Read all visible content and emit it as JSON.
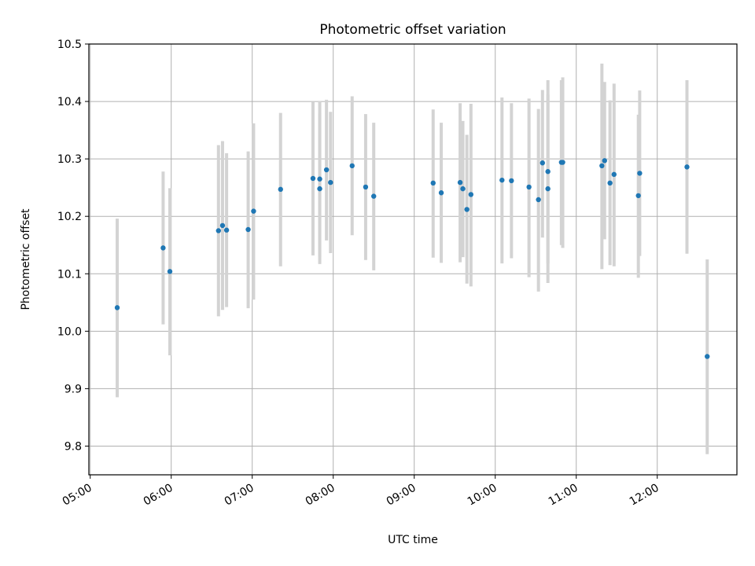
{
  "chart_data": {
    "type": "scatter",
    "title": "Photometric offset variation",
    "xlabel": "UTC time",
    "ylabel": "Photometric offset",
    "x_unit": "UTC time of day (HH:MM)",
    "xlim": [
      "04:59",
      "12:59"
    ],
    "ylim": [
      9.75,
      10.5
    ],
    "grid": true,
    "x_ticks": [
      "05:00",
      "06:00",
      "07:00",
      "08:00",
      "09:00",
      "10:00",
      "11:00",
      "12:00"
    ],
    "y_ticks": [
      "9.8",
      "9.9",
      "10.0",
      "10.1",
      "10.2",
      "10.3",
      "10.4",
      "10.5"
    ],
    "point_color": "#1f77b4",
    "errorbar_color": "#d3d3d3",
    "points": [
      {
        "x": "05:20",
        "y": 10.041,
        "low": 9.885,
        "high": 10.196
      },
      {
        "x": "05:54",
        "y": 10.145,
        "low": 10.012,
        "high": 10.278
      },
      {
        "x": "05:59",
        "y": 10.104,
        "low": 9.958,
        "high": 10.249
      },
      {
        "x": "06:35",
        "y": 10.175,
        "low": 10.026,
        "high": 10.324
      },
      {
        "x": "06:38",
        "y": 10.184,
        "low": 10.037,
        "high": 10.331
      },
      {
        "x": "06:41",
        "y": 10.176,
        "low": 10.042,
        "high": 10.31
      },
      {
        "x": "06:57",
        "y": 10.177,
        "low": 10.04,
        "high": 10.313
      },
      {
        "x": "07:01",
        "y": 10.209,
        "low": 10.055,
        "high": 10.362
      },
      {
        "x": "07:21",
        "y": 10.247,
        "low": 10.113,
        "high": 10.38
      },
      {
        "x": "07:45",
        "y": 10.266,
        "low": 10.132,
        "high": 10.4
      },
      {
        "x": "07:50",
        "y": 10.265,
        "low": 10.13,
        "high": 10.401
      },
      {
        "x": "07:50",
        "y": 10.248,
        "low": 10.117,
        "high": 10.379
      },
      {
        "x": "07:55",
        "y": 10.281,
        "low": 10.158,
        "high": 10.403
      },
      {
        "x": "07:58",
        "y": 10.259,
        "low": 10.136,
        "high": 10.382
      },
      {
        "x": "08:14",
        "y": 10.288,
        "low": 10.167,
        "high": 10.409
      },
      {
        "x": "08:24",
        "y": 10.251,
        "low": 10.124,
        "high": 10.378
      },
      {
        "x": "08:30",
        "y": 10.235,
        "low": 10.106,
        "high": 10.363
      },
      {
        "x": "09:14",
        "y": 10.258,
        "low": 10.128,
        "high": 10.386
      },
      {
        "x": "09:20",
        "y": 10.241,
        "low": 10.119,
        "high": 10.363
      },
      {
        "x": "09:34",
        "y": 10.259,
        "low": 10.12,
        "high": 10.397
      },
      {
        "x": "09:36",
        "y": 10.248,
        "low": 10.129,
        "high": 10.366
      },
      {
        "x": "09:39",
        "y": 10.212,
        "low": 10.083,
        "high": 10.342
      },
      {
        "x": "09:42",
        "y": 10.238,
        "low": 10.078,
        "high": 10.396
      },
      {
        "x": "10:05",
        "y": 10.263,
        "low": 10.118,
        "high": 10.407
      },
      {
        "x": "10:12",
        "y": 10.262,
        "low": 10.127,
        "high": 10.397
      },
      {
        "x": "10:25",
        "y": 10.251,
        "low": 10.094,
        "high": 10.405
      },
      {
        "x": "10:32",
        "y": 10.229,
        "low": 10.069,
        "high": 10.387
      },
      {
        "x": "10:35",
        "y": 10.293,
        "low": 10.163,
        "high": 10.42
      },
      {
        "x": "10:39",
        "y": 10.278,
        "low": 10.118,
        "high": 10.437
      },
      {
        "x": "10:39",
        "y": 10.248,
        "low": 10.084,
        "high": 10.412
      },
      {
        "x": "10:49",
        "y": 10.294,
        "low": 10.15,
        "high": 10.437
      },
      {
        "x": "10:50",
        "y": 10.294,
        "low": 10.145,
        "high": 10.442
      },
      {
        "x": "11:19",
        "y": 10.288,
        "low": 10.108,
        "high": 10.466
      },
      {
        "x": "11:21",
        "y": 10.297,
        "low": 10.16,
        "high": 10.434
      },
      {
        "x": "11:25",
        "y": 10.258,
        "low": 10.115,
        "high": 10.402
      },
      {
        "x": "11:28",
        "y": 10.273,
        "low": 10.113,
        "high": 10.431
      },
      {
        "x": "11:46",
        "y": 10.236,
        "low": 10.093,
        "high": 10.377
      },
      {
        "x": "11:47",
        "y": 10.275,
        "low": 10.131,
        "high": 10.419
      },
      {
        "x": "12:22",
        "y": 10.286,
        "low": 10.135,
        "high": 10.437
      },
      {
        "x": "12:37",
        "y": 9.956,
        "low": 9.786,
        "high": 10.125
      }
    ]
  }
}
